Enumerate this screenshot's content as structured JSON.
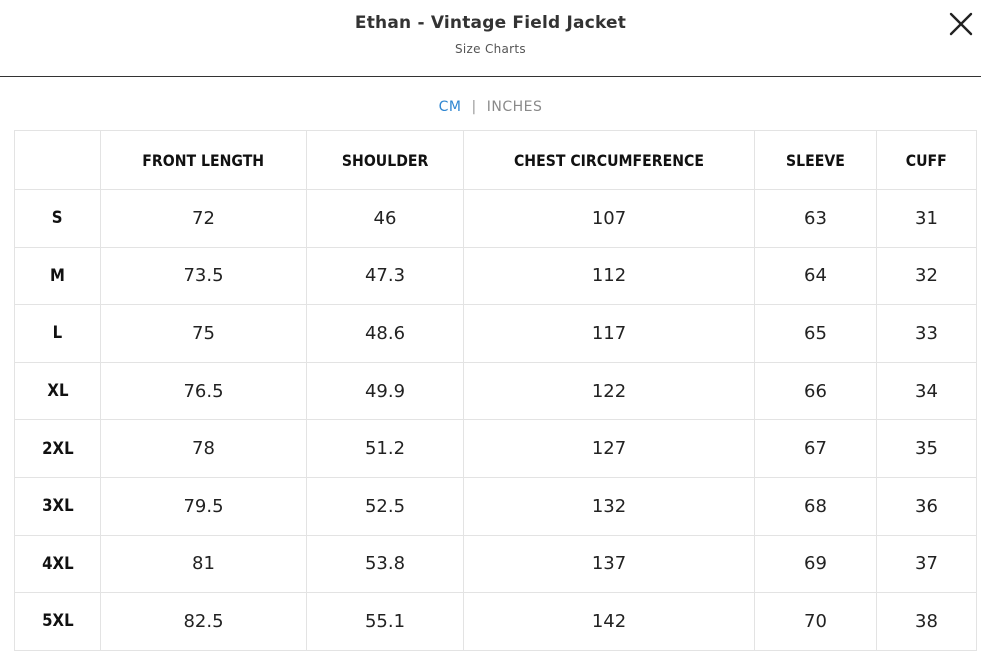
{
  "header": {
    "title": "Ethan - Vintage Field Jacket",
    "subtitle": "Size Charts"
  },
  "units": {
    "cm_label": "CM",
    "separator": "|",
    "inches_label": "INCHES",
    "active": "CM",
    "active_color": "#2f86d1"
  },
  "table": {
    "columns": [
      "",
      "FRONT LENGTH",
      "SHOULDER",
      "CHEST CIRCUMFERENCE",
      "SLEEVE",
      "CUFF"
    ],
    "rows": [
      {
        "size": "S",
        "values": [
          "72",
          "46",
          "107",
          "63",
          "31"
        ]
      },
      {
        "size": "M",
        "values": [
          "73.5",
          "47.3",
          "112",
          "64",
          "32"
        ]
      },
      {
        "size": "L",
        "values": [
          "75",
          "48.6",
          "117",
          "65",
          "33"
        ]
      },
      {
        "size": "XL",
        "values": [
          "76.5",
          "49.9",
          "122",
          "66",
          "34"
        ]
      },
      {
        "size": "2XL",
        "values": [
          "78",
          "51.2",
          "127",
          "67",
          "35"
        ]
      },
      {
        "size": "3XL",
        "values": [
          "79.5",
          "52.5",
          "132",
          "68",
          "36"
        ]
      },
      {
        "size": "4XL",
        "values": [
          "81",
          "53.8",
          "137",
          "69",
          "37"
        ]
      },
      {
        "size": "5XL",
        "values": [
          "82.5",
          "55.1",
          "142",
          "70",
          "38"
        ]
      }
    ]
  },
  "icons": {
    "close": "close-icon"
  }
}
